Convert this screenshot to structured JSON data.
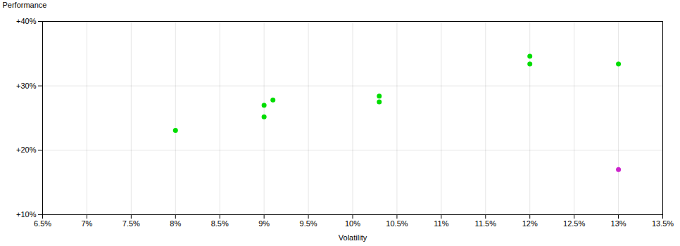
{
  "chart_data": {
    "type": "scatter",
    "xlabel": "Volatility",
    "ylabel": "Performance",
    "xlim": [
      0.065,
      0.135
    ],
    "ylim": [
      0.1,
      0.4
    ],
    "xticks": [
      {
        "value": 0.065,
        "label": "6.5%"
      },
      {
        "value": 0.07,
        "label": "7%"
      },
      {
        "value": 0.075,
        "label": "7.5%"
      },
      {
        "value": 0.08,
        "label": "8%"
      },
      {
        "value": 0.085,
        "label": "8.5%"
      },
      {
        "value": 0.09,
        "label": "9%"
      },
      {
        "value": 0.095,
        "label": "9.5%"
      },
      {
        "value": 0.1,
        "label": "10%"
      },
      {
        "value": 0.105,
        "label": "10.5%"
      },
      {
        "value": 0.11,
        "label": "11%"
      },
      {
        "value": 0.115,
        "label": "11.5%"
      },
      {
        "value": 0.12,
        "label": "12%"
      },
      {
        "value": 0.125,
        "label": "12.5%"
      },
      {
        "value": 0.13,
        "label": "13%"
      },
      {
        "value": 0.135,
        "label": "13.5%"
      }
    ],
    "yticks": [
      {
        "value": 0.1,
        "label": "+10%"
      },
      {
        "value": 0.2,
        "label": "+20%"
      },
      {
        "value": 0.3,
        "label": "+30%"
      },
      {
        "value": 0.4,
        "label": "+40%"
      }
    ],
    "grid": true,
    "series": [
      {
        "color": "#00dd00",
        "x": [
          0.08,
          0.09,
          0.09,
          0.091,
          0.103,
          0.103,
          0.12,
          0.12,
          0.13
        ],
        "values": [
          0.231,
          0.252,
          0.27,
          0.278,
          0.275,
          0.284,
          0.346,
          0.334,
          0.334
        ]
      },
      {
        "color": "#cc22cc",
        "x": [
          0.13
        ],
        "values": [
          0.17
        ]
      }
    ]
  }
}
